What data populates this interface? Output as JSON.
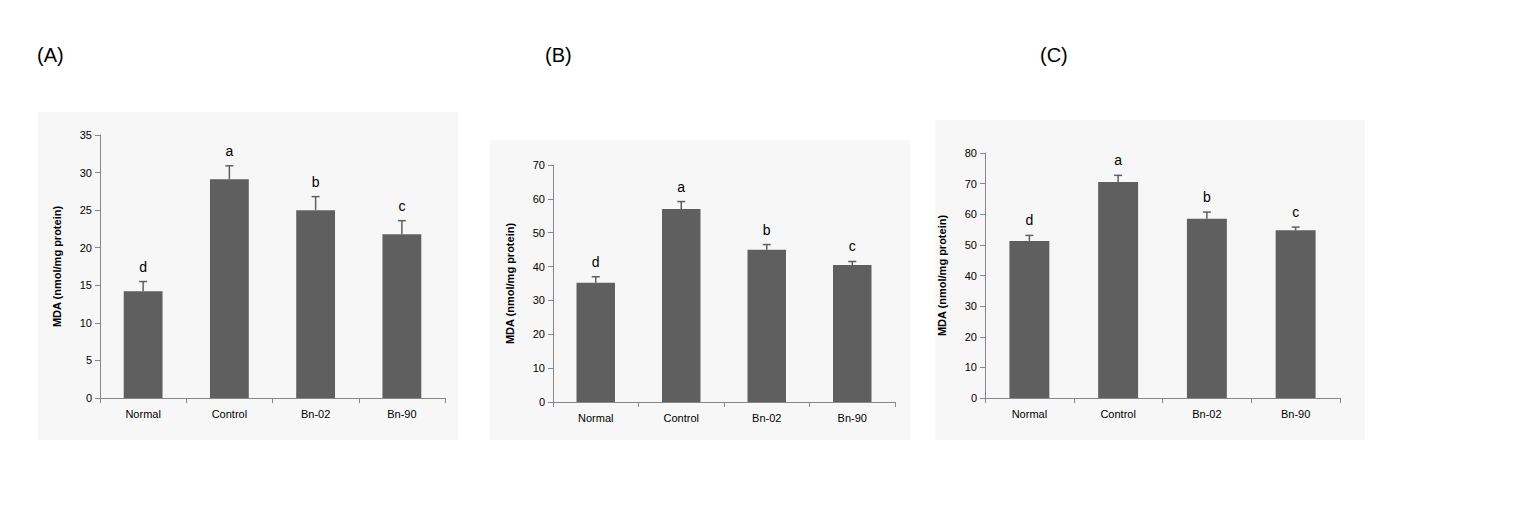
{
  "chart_data": [
    {
      "type": "bar",
      "title": "(A)",
      "ylabel": "MDA (nmol/mg protein)",
      "categories": [
        "Normal",
        "Control",
        "Bn-02",
        "Bn-90"
      ],
      "values": [
        14.2,
        29.1,
        25.0,
        21.8
      ],
      "errors": [
        1.3,
        1.8,
        1.8,
        1.8
      ],
      "annotations": [
        "d",
        "a",
        "b",
        "c"
      ],
      "color": "#5f5f5f",
      "ylim": [
        0,
        35
      ],
      "yticks": [
        0,
        5,
        10,
        15,
        20,
        25,
        30,
        35
      ],
      "grid": false
    },
    {
      "type": "bar",
      "title": "(B)",
      "ylabel": "MDA (nmol/mg protein)",
      "categories": [
        "Normal",
        "Control",
        "Bn-02",
        "Bn-90"
      ],
      "values": [
        35.2,
        57.0,
        45.0,
        40.5
      ],
      "errors": [
        1.8,
        2.2,
        1.5,
        1.0
      ],
      "annotations": [
        "d",
        "a",
        "b",
        "c"
      ],
      "color": "#5f5f5f",
      "ylim": [
        0,
        70
      ],
      "yticks": [
        0,
        10,
        20,
        30,
        40,
        50,
        60,
        70
      ],
      "grid": false
    },
    {
      "type": "bar",
      "title": "(C)",
      "ylabel": "MDA (nmol/mg protein)",
      "categories": [
        "Normal",
        "Control",
        "Bn-02",
        "Bn-90"
      ],
      "values": [
        51.3,
        70.5,
        58.5,
        54.8
      ],
      "errors": [
        1.8,
        2.2,
        2.2,
        1.0
      ],
      "annotations": [
        "d",
        "a",
        "b",
        "c"
      ],
      "color": "#5f5f5f",
      "ylim": [
        0,
        80
      ],
      "yticks": [
        0,
        10,
        20,
        30,
        40,
        50,
        60,
        70,
        80
      ],
      "grid": false
    }
  ]
}
